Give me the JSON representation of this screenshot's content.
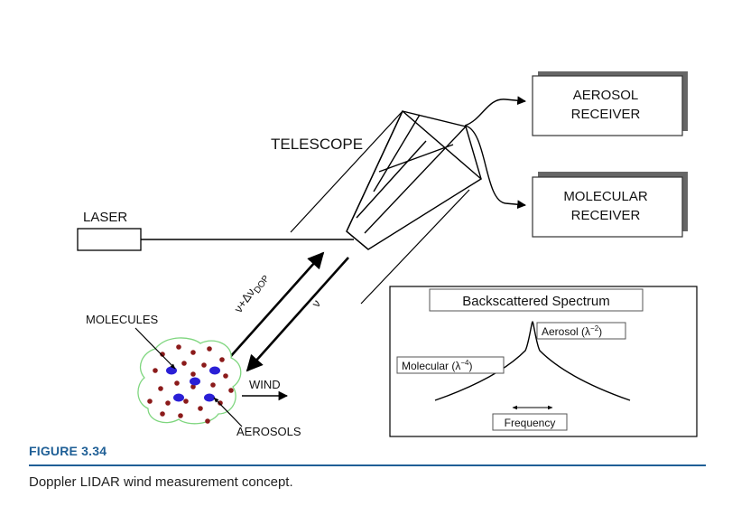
{
  "labels": {
    "telescope": "TELESCOPE",
    "laser": "LASER",
    "aerosol_receiver_line1": "AEROSOL",
    "aerosol_receiver_line2": "RECEIVER",
    "molecular_receiver_line1": "MOLECULAR",
    "molecular_receiver_line2": "RECEIVER",
    "molecules": "MOLECULES",
    "aerosols": "AEROSOLS",
    "wind": "WIND",
    "doppler_beam": "ν+Δν",
    "doppler_subscript": "DOP",
    "outgoing_beam": "ν"
  },
  "inset": {
    "title": "Backscattered Spectrum",
    "aerosol_peak_text": "Aerosol (λ",
    "aerosol_peak_exp": "−2",
    "molecular_peak_text": "Molecular (λ",
    "molecular_peak_exp": "−4",
    "frequency_label": "Frequency"
  },
  "figure": {
    "label": "FIGURE 3.34",
    "caption": "Doppler LIDAR wind measurement concept."
  },
  "colors": {
    "figure_blue": "#1f5f96",
    "molecule_red": "#8b1a1a",
    "aerosol_blue": "#2a1fd6",
    "cloud_green": "#7fd67f"
  }
}
